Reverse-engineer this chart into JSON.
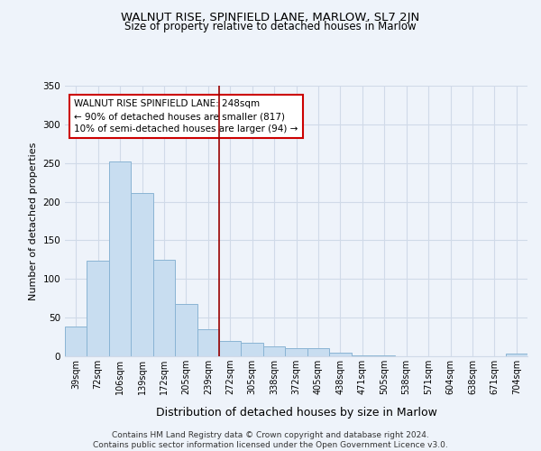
{
  "title": "WALNUT RISE, SPINFIELD LANE, MARLOW, SL7 2JN",
  "subtitle": "Size of property relative to detached houses in Marlow",
  "xlabel": "Distribution of detached houses by size in Marlow",
  "ylabel": "Number of detached properties",
  "categories": [
    "39sqm",
    "72sqm",
    "106sqm",
    "139sqm",
    "172sqm",
    "205sqm",
    "239sqm",
    "272sqm",
    "305sqm",
    "338sqm",
    "372sqm",
    "405sqm",
    "438sqm",
    "471sqm",
    "505sqm",
    "538sqm",
    "571sqm",
    "604sqm",
    "638sqm",
    "671sqm",
    "704sqm"
  ],
  "values": [
    38,
    124,
    252,
    211,
    125,
    68,
    35,
    20,
    17,
    13,
    10,
    10,
    5,
    1,
    1,
    0,
    0,
    0,
    0,
    0,
    4
  ],
  "bar_color": "#c8ddf0",
  "bar_edge_color": "#8ab4d4",
  "vline_x_index": 6.5,
  "vline_color": "#990000",
  "annotation_text": "WALNUT RISE SPINFIELD LANE: 248sqm\n← 90% of detached houses are smaller (817)\n10% of semi-detached houses are larger (94) →",
  "annotation_box_color": "#ffffff",
  "annotation_box_edgecolor": "#cc0000",
  "ylim": [
    0,
    350
  ],
  "yticks": [
    0,
    50,
    100,
    150,
    200,
    250,
    300,
    350
  ],
  "footer_text": "Contains HM Land Registry data © Crown copyright and database right 2024.\nContains public sector information licensed under the Open Government Licence v3.0.",
  "bg_color": "#eef3fa",
  "plot_bg_color": "#eef3fa",
  "grid_color": "#d0dae8",
  "title_fontsize": 9.5,
  "subtitle_fontsize": 8.5,
  "xlabel_fontsize": 9,
  "ylabel_fontsize": 8,
  "tick_fontsize": 7,
  "annotation_fontsize": 7.5,
  "footer_fontsize": 6.5
}
